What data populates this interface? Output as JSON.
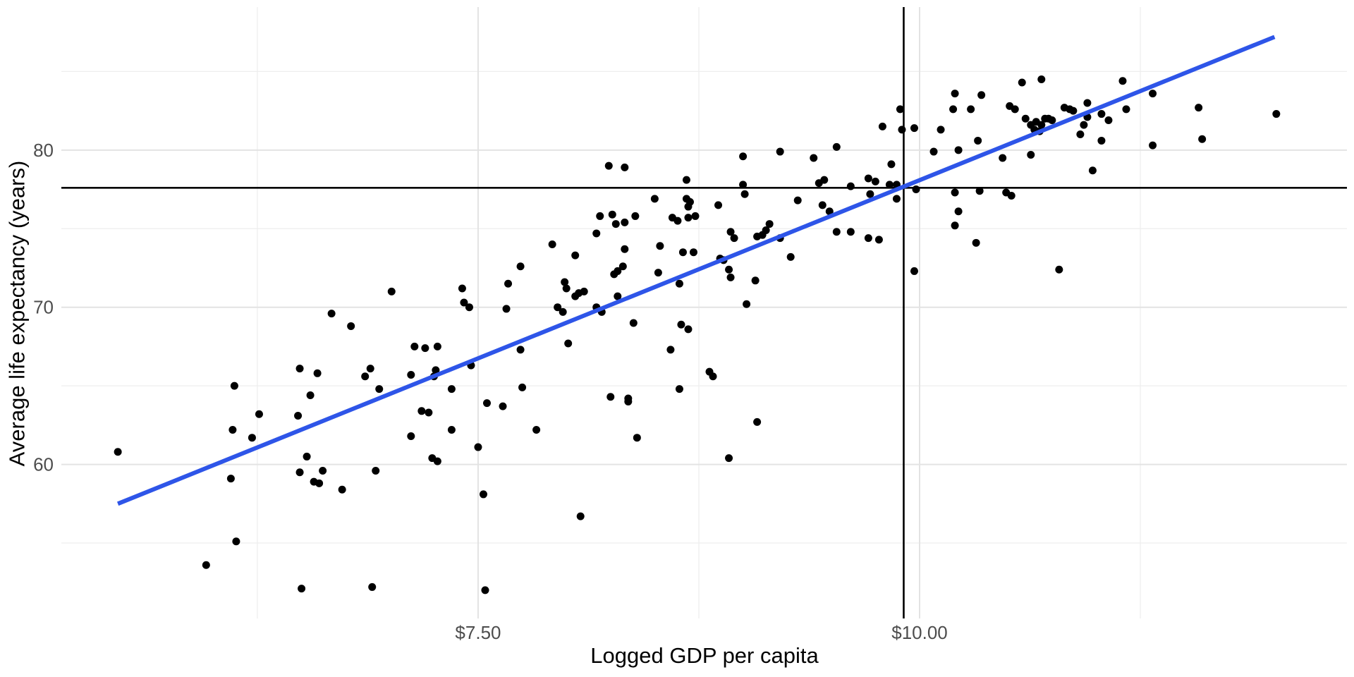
{
  "chart_data": {
    "type": "scatter",
    "title": "",
    "xlabel": "Logged GDP per capita",
    "ylabel": "Average life expectancy (years)",
    "xlim": [
      5.14,
      12.42
    ],
    "ylim": [
      50.2,
      89.1
    ],
    "grid": true,
    "legend": false,
    "x_ticks": [
      {
        "value": 7.5,
        "label": "$7.50"
      },
      {
        "value": 10.0,
        "label": "$10.00"
      }
    ],
    "y_ticks": [
      {
        "value": 60,
        "label": "60"
      },
      {
        "value": 70,
        "label": "70"
      },
      {
        "value": 80,
        "label": "80"
      }
    ],
    "x_minor_gridlines": [
      6.25,
      8.75,
      11.25
    ],
    "y_minor_gridlines": [
      55,
      65,
      75,
      85
    ],
    "reference_lines": {
      "horizontal_y": 77.6,
      "vertical_x": 9.91,
      "color": "#000000"
    },
    "trend_line": {
      "x1": 5.46,
      "y1": 57.5,
      "x2": 12.01,
      "y2": 87.2,
      "color": "#2E55E8"
    },
    "point_color": "#000000",
    "points": [
      [
        5.46,
        60.8
      ],
      [
        6.12,
        65.0
      ],
      [
        6.26,
        63.2
      ],
      [
        6.11,
        62.2
      ],
      [
        6.22,
        61.7
      ],
      [
        6.1,
        59.1
      ],
      [
        6.49,
        66.1
      ],
      [
        6.59,
        65.8
      ],
      [
        6.55,
        64.4
      ],
      [
        6.48,
        63.1
      ],
      [
        6.53,
        60.5
      ],
      [
        6.49,
        59.5
      ],
      [
        6.57,
        58.9
      ],
      [
        6.6,
        58.8
      ],
      [
        6.62,
        59.6
      ],
      [
        5.96,
        53.6
      ],
      [
        6.13,
        55.1
      ],
      [
        6.5,
        52.1
      ],
      [
        6.67,
        69.6
      ],
      [
        7.01,
        71.0
      ],
      [
        7.41,
        71.2
      ],
      [
        7.42,
        70.3
      ],
      [
        7.45,
        70.0
      ],
      [
        7.66,
        69.9
      ],
      [
        7.67,
        71.5
      ],
      [
        7.74,
        72.6
      ],
      [
        7.92,
        74.0
      ],
      [
        8.05,
        73.3
      ],
      [
        7.99,
        71.6
      ],
      [
        8.0,
        71.2
      ],
      [
        8.05,
        70.7
      ],
      [
        8.07,
        70.9
      ],
      [
        8.1,
        71.0
      ],
      [
        7.95,
        70.0
      ],
      [
        7.98,
        69.7
      ],
      [
        8.01,
        67.7
      ],
      [
        7.74,
        67.3
      ],
      [
        6.78,
        68.8
      ],
      [
        7.14,
        67.5
      ],
      [
        7.2,
        67.4
      ],
      [
        7.27,
        67.5
      ],
      [
        6.89,
        66.1
      ],
      [
        6.86,
        65.6
      ],
      [
        7.12,
        65.7
      ],
      [
        7.26,
        66.0
      ],
      [
        7.25,
        65.6
      ],
      [
        7.46,
        66.3
      ],
      [
        6.94,
        64.8
      ],
      [
        7.35,
        64.8
      ],
      [
        7.55,
        63.9
      ],
      [
        7.64,
        63.7
      ],
      [
        7.18,
        63.4
      ],
      [
        7.22,
        63.3
      ],
      [
        7.35,
        62.2
      ],
      [
        7.12,
        61.8
      ],
      [
        7.5,
        61.1
      ],
      [
        7.24,
        60.4
      ],
      [
        7.27,
        60.2
      ],
      [
        6.92,
        59.6
      ],
      [
        6.73,
        58.4
      ],
      [
        7.53,
        58.1
      ],
      [
        7.75,
        64.9
      ],
      [
        7.83,
        62.2
      ],
      [
        8.08,
        56.7
      ],
      [
        6.9,
        52.2
      ],
      [
        7.54,
        52.0
      ],
      [
        8.24,
        79.0
      ],
      [
        8.33,
        78.9
      ],
      [
        9.0,
        79.6
      ],
      [
        9.21,
        79.9
      ],
      [
        9.4,
        79.5
      ],
      [
        9.53,
        80.2
      ],
      [
        9.79,
        81.5
      ],
      [
        9.89,
        82.6
      ],
      [
        9.9,
        81.3
      ],
      [
        8.68,
        78.1
      ],
      [
        9.0,
        77.8
      ],
      [
        9.01,
        77.2
      ],
      [
        9.43,
        77.9
      ],
      [
        9.46,
        78.1
      ],
      [
        9.71,
        78.2
      ],
      [
        9.75,
        78.0
      ],
      [
        9.61,
        77.7
      ],
      [
        9.72,
        77.2
      ],
      [
        9.83,
        77.8
      ],
      [
        9.87,
        77.8
      ],
      [
        9.84,
        79.1
      ],
      [
        9.87,
        76.9
      ],
      [
        8.5,
        76.9
      ],
      [
        8.68,
        76.9
      ],
      [
        8.7,
        76.7
      ],
      [
        8.69,
        76.4
      ],
      [
        8.86,
        76.5
      ],
      [
        9.31,
        76.8
      ],
      [
        9.45,
        76.5
      ],
      [
        9.49,
        76.1
      ],
      [
        8.19,
        75.8
      ],
      [
        8.26,
        75.9
      ],
      [
        8.39,
        75.8
      ],
      [
        8.28,
        75.3
      ],
      [
        8.33,
        75.4
      ],
      [
        8.6,
        75.7
      ],
      [
        8.63,
        75.5
      ],
      [
        8.69,
        75.7
      ],
      [
        8.73,
        75.8
      ],
      [
        8.17,
        74.7
      ],
      [
        8.93,
        74.8
      ],
      [
        8.95,
        74.4
      ],
      [
        9.08,
        74.5
      ],
      [
        9.11,
        74.6
      ],
      [
        9.13,
        74.9
      ],
      [
        9.15,
        75.3
      ],
      [
        9.21,
        74.4
      ],
      [
        9.53,
        74.8
      ],
      [
        9.61,
        74.8
      ],
      [
        9.71,
        74.4
      ],
      [
        9.77,
        74.3
      ],
      [
        8.33,
        73.7
      ],
      [
        8.53,
        73.9
      ],
      [
        8.66,
        73.5
      ],
      [
        8.72,
        73.5
      ],
      [
        8.87,
        73.1
      ],
      [
        8.89,
        73.0
      ],
      [
        8.32,
        72.6
      ],
      [
        8.29,
        72.3
      ],
      [
        8.27,
        72.1
      ],
      [
        8.52,
        72.2
      ],
      [
        8.64,
        71.5
      ],
      [
        8.92,
        72.4
      ],
      [
        8.93,
        71.9
      ],
      [
        9.07,
        71.7
      ],
      [
        9.27,
        73.2
      ],
      [
        8.29,
        70.7
      ],
      [
        8.17,
        70.0
      ],
      [
        8.2,
        69.7
      ],
      [
        9.02,
        70.2
      ],
      [
        8.38,
        69.0
      ],
      [
        8.65,
        68.9
      ],
      [
        8.69,
        68.6
      ],
      [
        8.59,
        67.3
      ],
      [
        8.81,
        65.9
      ],
      [
        8.83,
        65.6
      ],
      [
        8.25,
        64.3
      ],
      [
        8.35,
        64.2
      ],
      [
        8.4,
        61.7
      ],
      [
        8.64,
        64.8
      ],
      [
        8.35,
        64.0
      ],
      [
        9.08,
        62.7
      ],
      [
        8.92,
        60.4
      ],
      [
        10.58,
        84.3
      ],
      [
        10.69,
        84.5
      ],
      [
        10.2,
        83.6
      ],
      [
        10.35,
        83.5
      ],
      [
        10.19,
        82.6
      ],
      [
        10.29,
        82.6
      ],
      [
        10.51,
        82.8
      ],
      [
        10.54,
        82.6
      ],
      [
        10.82,
        82.7
      ],
      [
        10.85,
        82.6
      ],
      [
        10.87,
        82.5
      ],
      [
        9.97,
        81.4
      ],
      [
        10.12,
        81.3
      ],
      [
        10.6,
        82.0
      ],
      [
        10.63,
        81.6
      ],
      [
        10.66,
        81.8
      ],
      [
        10.69,
        81.6
      ],
      [
        10.71,
        82.0
      ],
      [
        10.73,
        82.0
      ],
      [
        10.75,
        81.9
      ],
      [
        10.65,
        81.3
      ],
      [
        10.68,
        81.2
      ],
      [
        10.33,
        80.6
      ],
      [
        10.08,
        79.9
      ],
      [
        10.22,
        80.0
      ],
      [
        10.47,
        79.5
      ],
      [
        10.63,
        79.7
      ],
      [
        9.98,
        77.5
      ],
      [
        10.2,
        77.3
      ],
      [
        10.34,
        77.4
      ],
      [
        10.49,
        77.3
      ],
      [
        10.52,
        77.1
      ],
      [
        10.22,
        76.1
      ],
      [
        10.2,
        75.2
      ],
      [
        10.32,
        74.1
      ],
      [
        9.97,
        72.3
      ],
      [
        10.79,
        72.4
      ],
      [
        10.95,
        83.0
      ],
      [
        10.95,
        82.1
      ],
      [
        10.93,
        81.6
      ],
      [
        10.91,
        81.0
      ],
      [
        11.03,
        82.3
      ],
      [
        11.07,
        81.9
      ],
      [
        11.03,
        80.6
      ],
      [
        11.15,
        84.4
      ],
      [
        11.17,
        82.6
      ],
      [
        10.98,
        78.7
      ],
      [
        11.32,
        83.6
      ],
      [
        11.32,
        80.3
      ],
      [
        11.58,
        82.7
      ],
      [
        11.6,
        80.7
      ],
      [
        12.02,
        82.3
      ]
    ]
  },
  "colors": {
    "background": "#FFFFFF",
    "major_grid": "#E3E3E3",
    "minor_grid": "#EEEEEE",
    "tick_label": "#4D4D4D",
    "axis_title": "#000000",
    "point": "#000000",
    "trend": "#2E55E8",
    "reference": "#000000"
  }
}
